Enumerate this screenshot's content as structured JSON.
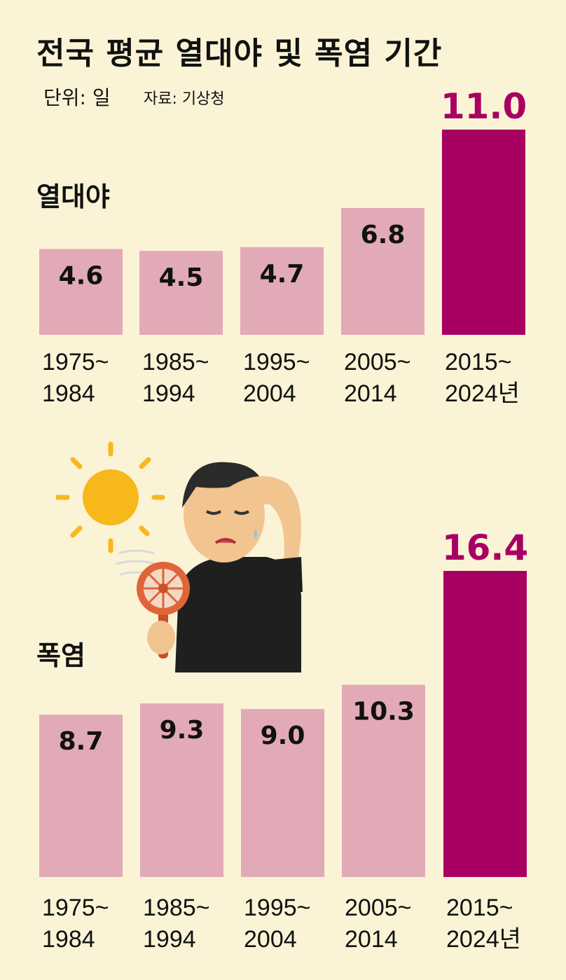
{
  "title": "전국 평균 열대야 및 폭염 기간",
  "unit": "단위: 일",
  "source": "자료: 기상청",
  "colors": {
    "background": "#fbf3d6",
    "bar_normal": "#e2aab7",
    "bar_highlight": "#a80062",
    "highlight_label": "#a80062"
  },
  "illustration": "man-overheated-sun-handheld-fan",
  "chart_data": [
    {
      "type": "bar",
      "title": "열대야",
      "categories": [
        "1975~1984",
        "1985~1994",
        "1995~2004",
        "2005~2014",
        "2015~2024년"
      ],
      "tick_labels": [
        [
          "1975~",
          "1984"
        ],
        [
          "1985~",
          "1994"
        ],
        [
          "1995~",
          "2004"
        ],
        [
          "2005~",
          "2014"
        ],
        [
          "2015~",
          "2024년"
        ]
      ],
      "values": [
        4.6,
        4.5,
        4.7,
        6.8,
        11.0
      ],
      "value_labels": [
        "4.6",
        "4.5",
        "4.7",
        "6.8",
        "11.0"
      ],
      "highlight_index": 4,
      "ylim": [
        0,
        11.0
      ],
      "grid": false
    },
    {
      "type": "bar",
      "title": "폭염",
      "categories": [
        "1975~1984",
        "1985~1994",
        "1995~2004",
        "2005~2014",
        "2015~2024년"
      ],
      "tick_labels": [
        [
          "1975~",
          "1984"
        ],
        [
          "1985~",
          "1994"
        ],
        [
          "1995~",
          "2004"
        ],
        [
          "2005~",
          "2014"
        ],
        [
          "2015~",
          "2024년"
        ]
      ],
      "values": [
        8.7,
        9.3,
        9.0,
        10.3,
        16.4
      ],
      "value_labels": [
        "8.7",
        "9.3",
        "9.0",
        "10.3",
        "16.4"
      ],
      "highlight_index": 4,
      "ylim": [
        0,
        16.4
      ],
      "grid": false
    }
  ]
}
